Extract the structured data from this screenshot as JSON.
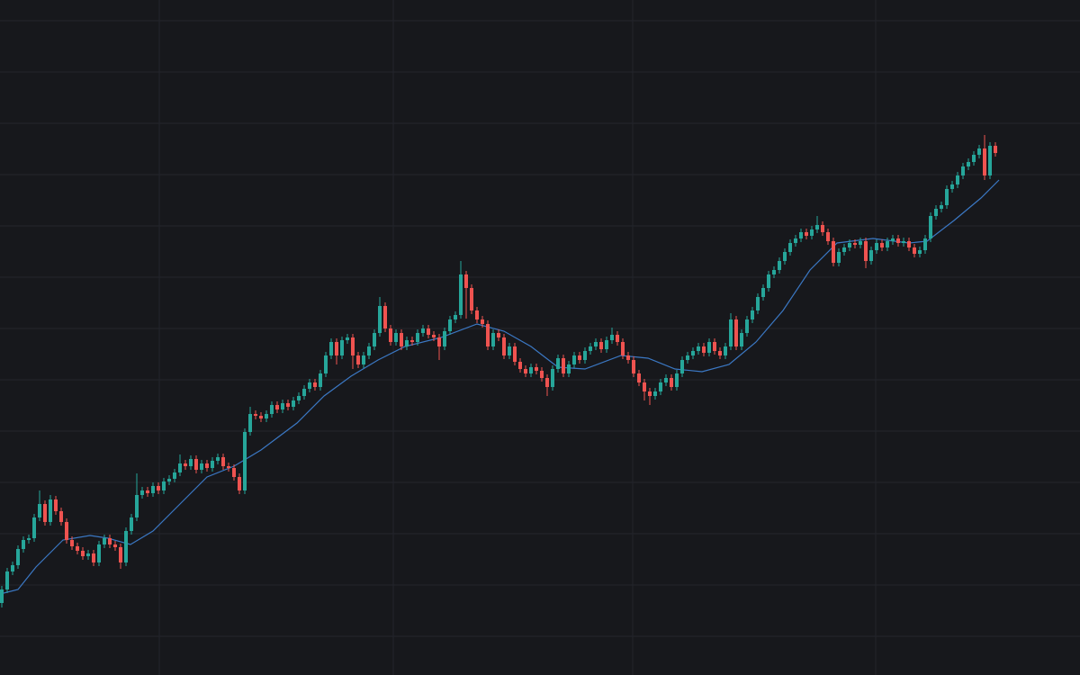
{
  "chart_data": {
    "type": "candlestick",
    "up_color": "#26a69a",
    "down_color": "#ef5350",
    "grid": true,
    "grid_color": "#24262c",
    "background": "#17181c",
    "xlim": [
      -0.333,
      199.667
    ],
    "xticks": [
      29.17,
      72.5,
      116.83,
      161.83
    ],
    "ylim": [
      0,
      750
    ],
    "yticks": [
      43,
      100,
      157,
      214,
      271,
      328,
      385,
      442,
      499,
      556,
      613,
      670,
      727
    ],
    "ohlc": [
      [
        80,
        99,
        75,
        95
      ],
      [
        95,
        119,
        91,
        115
      ],
      [
        115,
        126,
        111,
        122
      ],
      [
        122,
        144,
        118,
        140
      ],
      [
        140,
        154,
        136,
        150
      ],
      [
        150,
        156,
        146,
        152
      ],
      [
        152,
        179,
        148,
        175
      ],
      [
        175,
        205,
        171,
        190
      ],
      [
        190,
        194,
        166,
        170
      ],
      [
        170,
        200,
        166,
        195
      ],
      [
        195,
        199,
        178,
        182
      ],
      [
        182,
        186,
        166,
        170
      ],
      [
        170,
        174,
        146,
        150
      ],
      [
        150,
        154,
        139,
        143
      ],
      [
        143,
        147,
        134,
        138
      ],
      [
        138,
        142,
        128,
        132
      ],
      [
        132,
        139,
        128,
        135
      ],
      [
        135,
        139,
        121,
        125
      ],
      [
        125,
        149,
        121,
        145
      ],
      [
        145,
        156,
        141,
        152
      ],
      [
        152,
        156,
        141,
        145
      ],
      [
        145,
        149,
        138,
        142
      ],
      [
        142,
        146,
        118,
        125
      ],
      [
        125,
        164,
        121,
        160
      ],
      [
        160,
        179,
        156,
        175
      ],
      [
        175,
        224,
        171,
        200
      ],
      [
        200,
        209,
        196,
        205
      ],
      [
        205,
        209,
        198,
        202
      ],
      [
        202,
        214,
        198,
        210
      ],
      [
        210,
        214,
        201,
        205
      ],
      [
        205,
        219,
        201,
        215
      ],
      [
        215,
        222,
        211,
        218
      ],
      [
        218,
        229,
        214,
        225
      ],
      [
        225,
        245,
        221,
        235
      ],
      [
        235,
        239,
        228,
        232
      ],
      [
        232,
        244,
        228,
        240
      ],
      [
        240,
        244,
        224,
        228
      ],
      [
        228,
        239,
        224,
        235
      ],
      [
        235,
        239,
        226,
        230
      ],
      [
        230,
        242,
        226,
        238
      ],
      [
        238,
        246,
        234,
        242
      ],
      [
        242,
        246,
        228,
        232
      ],
      [
        232,
        236,
        226,
        230
      ],
      [
        230,
        234,
        216,
        220
      ],
      [
        220,
        224,
        201,
        205
      ],
      [
        205,
        274,
        201,
        270
      ],
      [
        270,
        298,
        266,
        290
      ],
      [
        290,
        294,
        284,
        288
      ],
      [
        288,
        292,
        281,
        285
      ],
      [
        285,
        294,
        281,
        290
      ],
      [
        290,
        304,
        286,
        300
      ],
      [
        300,
        304,
        291,
        295
      ],
      [
        295,
        306,
        291,
        302
      ],
      [
        302,
        306,
        294,
        298
      ],
      [
        298,
        309,
        294,
        305
      ],
      [
        305,
        314,
        301,
        310
      ],
      [
        310,
        322,
        306,
        318
      ],
      [
        318,
        329,
        314,
        325
      ],
      [
        325,
        329,
        316,
        320
      ],
      [
        320,
        339,
        316,
        335
      ],
      [
        335,
        359,
        331,
        355
      ],
      [
        355,
        374,
        351,
        370
      ],
      [
        370,
        374,
        345,
        355
      ],
      [
        355,
        376,
        351,
        372
      ],
      [
        372,
        379,
        368,
        375
      ],
      [
        375,
        379,
        340,
        355
      ],
      [
        355,
        359,
        341,
        345
      ],
      [
        345,
        359,
        341,
        355
      ],
      [
        355,
        369,
        351,
        365
      ],
      [
        365,
        384,
        361,
        380
      ],
      [
        380,
        420,
        376,
        410
      ],
      [
        410,
        414,
        381,
        385
      ],
      [
        385,
        389,
        366,
        370
      ],
      [
        370,
        384,
        366,
        380
      ],
      [
        380,
        384,
        361,
        365
      ],
      [
        365,
        376,
        361,
        372
      ],
      [
        372,
        376,
        366,
        370
      ],
      [
        370,
        384,
        366,
        380
      ],
      [
        380,
        389,
        376,
        385
      ],
      [
        385,
        389,
        374,
        378
      ],
      [
        378,
        382,
        371,
        375
      ],
      [
        375,
        379,
        350,
        365
      ],
      [
        365,
        386,
        361,
        382
      ],
      [
        382,
        399,
        378,
        395
      ],
      [
        395,
        404,
        391,
        400
      ],
      [
        400,
        460,
        396,
        445
      ],
      [
        445,
        449,
        396,
        430
      ],
      [
        430,
        434,
        401,
        405
      ],
      [
        405,
        409,
        391,
        395
      ],
      [
        395,
        399,
        386,
        390
      ],
      [
        390,
        394,
        361,
        365
      ],
      [
        365,
        384,
        361,
        380
      ],
      [
        380,
        384,
        371,
        375
      ],
      [
        375,
        379,
        351,
        355
      ],
      [
        355,
        369,
        351,
        365
      ],
      [
        365,
        369,
        344,
        348
      ],
      [
        348,
        352,
        336,
        340
      ],
      [
        340,
        344,
        331,
        335
      ],
      [
        335,
        346,
        331,
        342
      ],
      [
        342,
        346,
        334,
        338
      ],
      [
        338,
        342,
        326,
        330
      ],
      [
        330,
        334,
        310,
        320
      ],
      [
        320,
        344,
        316,
        340
      ],
      [
        340,
        356,
        336,
        352
      ],
      [
        352,
        356,
        331,
        335
      ],
      [
        335,
        349,
        331,
        345
      ],
      [
        345,
        359,
        341,
        355
      ],
      [
        355,
        359,
        346,
        350
      ],
      [
        350,
        364,
        346,
        360
      ],
      [
        360,
        369,
        356,
        365
      ],
      [
        365,
        374,
        361,
        370
      ],
      [
        370,
        374,
        358,
        362
      ],
      [
        362,
        376,
        358,
        372
      ],
      [
        372,
        386,
        368,
        378
      ],
      [
        378,
        382,
        366,
        370
      ],
      [
        370,
        374,
        351,
        355
      ],
      [
        355,
        359,
        346,
        350
      ],
      [
        350,
        354,
        331,
        335
      ],
      [
        335,
        339,
        321,
        325
      ],
      [
        325,
        329,
        305,
        315
      ],
      [
        315,
        319,
        300,
        310
      ],
      [
        310,
        319,
        306,
        315
      ],
      [
        315,
        329,
        311,
        325
      ],
      [
        325,
        334,
        321,
        330
      ],
      [
        330,
        334,
        316,
        320
      ],
      [
        320,
        339,
        316,
        335
      ],
      [
        335,
        354,
        331,
        350
      ],
      [
        350,
        359,
        346,
        355
      ],
      [
        355,
        364,
        351,
        360
      ],
      [
        360,
        369,
        356,
        365
      ],
      [
        365,
        369,
        354,
        358
      ],
      [
        358,
        374,
        354,
        370
      ],
      [
        370,
        374,
        356,
        360
      ],
      [
        360,
        364,
        351,
        355
      ],
      [
        355,
        369,
        351,
        365
      ],
      [
        365,
        402,
        361,
        395
      ],
      [
        395,
        399,
        361,
        365
      ],
      [
        365,
        384,
        361,
        380
      ],
      [
        380,
        399,
        376,
        395
      ],
      [
        395,
        409,
        391,
        405
      ],
      [
        405,
        424,
        401,
        420
      ],
      [
        420,
        434,
        416,
        430
      ],
      [
        430,
        449,
        426,
        445
      ],
      [
        445,
        454,
        441,
        450
      ],
      [
        450,
        464,
        446,
        460
      ],
      [
        460,
        474,
        456,
        470
      ],
      [
        470,
        484,
        466,
        480
      ],
      [
        480,
        489,
        476,
        485
      ],
      [
        485,
        496,
        481,
        492
      ],
      [
        492,
        496,
        484,
        488
      ],
      [
        488,
        499,
        484,
        495
      ],
      [
        495,
        510,
        491,
        500
      ],
      [
        500,
        504,
        488,
        492
      ],
      [
        492,
        496,
        478,
        482
      ],
      [
        482,
        486,
        454,
        458
      ],
      [
        458,
        474,
        454,
        470
      ],
      [
        470,
        479,
        466,
        475
      ],
      [
        475,
        484,
        471,
        480
      ],
      [
        480,
        484,
        474,
        478
      ],
      [
        478,
        486,
        474,
        482
      ],
      [
        482,
        486,
        452,
        460
      ],
      [
        460,
        476,
        456,
        472
      ],
      [
        472,
        484,
        468,
        480
      ],
      [
        480,
        484,
        471,
        475
      ],
      [
        475,
        486,
        471,
        482
      ],
      [
        482,
        489,
        478,
        485
      ],
      [
        485,
        489,
        476,
        480
      ],
      [
        480,
        486,
        476,
        482
      ],
      [
        482,
        486,
        471,
        475
      ],
      [
        475,
        479,
        464,
        468
      ],
      [
        468,
        476,
        464,
        472
      ],
      [
        472,
        489,
        468,
        485
      ],
      [
        485,
        514,
        481,
        510
      ],
      [
        510,
        522,
        506,
        518
      ],
      [
        518,
        526,
        514,
        522
      ],
      [
        522,
        544,
        518,
        540
      ],
      [
        540,
        549,
        536,
        545
      ],
      [
        545,
        559,
        541,
        555
      ],
      [
        555,
        569,
        551,
        565
      ],
      [
        565,
        574,
        561,
        570
      ],
      [
        570,
        582,
        566,
        578
      ],
      [
        578,
        589,
        574,
        585
      ],
      [
        585,
        600,
        550,
        555
      ],
      [
        555,
        592,
        551,
        588
      ],
      [
        588,
        592,
        576,
        580
      ]
    ],
    "overlay": {
      "type": "line",
      "color": "#3b78c4",
      "x": [
        -0.33,
        3,
        6.33,
        11.33,
        16.33,
        19.67,
        23.83,
        28,
        33,
        38,
        43,
        48,
        54.67,
        59.67,
        64.67,
        69.67,
        74.67,
        81.33,
        88,
        93,
        98,
        103,
        108,
        114.67,
        119.67,
        124.67,
        129.67,
        134.67,
        139.67,
        144.67,
        149.67,
        154.67,
        161.33,
        168,
        171.33,
        176.33,
        181.33,
        184.67
      ],
      "values": [
        90,
        95,
        120,
        150,
        155,
        152,
        145,
        160,
        190,
        220,
        232,
        250,
        280,
        310,
        332,
        350,
        365,
        375,
        390,
        382,
        365,
        342,
        340,
        355,
        352,
        340,
        337,
        345,
        370,
        405,
        450,
        480,
        485,
        480,
        482,
        505,
        530,
        550
      ]
    }
  }
}
